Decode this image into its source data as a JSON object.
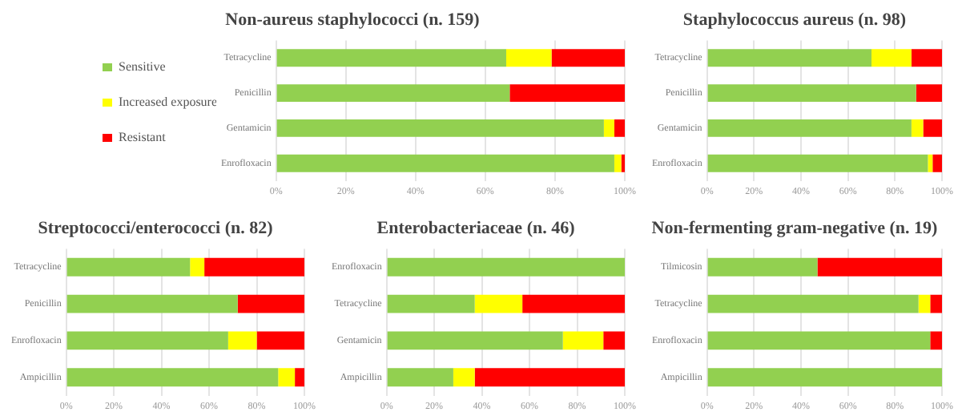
{
  "chart_data": [
    {
      "type": "bar",
      "title": "Non-aureus staphylococci (n. 159)",
      "orientation": "horizontal",
      "stacked": true,
      "grid": "x",
      "legend": "left",
      "categories": [
        "Tetracycline",
        "Penicillin",
        "Gentamicin",
        "Enrofloxacin"
      ],
      "xlim": [
        0,
        100
      ],
      "xticks": [
        {
          "value": 0,
          "label": "0%"
        },
        {
          "value": 20,
          "label": "20%"
        },
        {
          "value": 40,
          "label": "40%"
        },
        {
          "value": 60,
          "label": "60%"
        },
        {
          "value": 80,
          "label": "80%"
        },
        {
          "value": 100,
          "label": "100%"
        }
      ],
      "series": [
        {
          "name": "Sensitive",
          "color": "#92d050",
          "values": [
            66,
            67,
            94,
            97
          ]
        },
        {
          "name": "Increased exposure",
          "color": "#ffff00",
          "values": [
            13,
            0,
            3,
            2
          ]
        },
        {
          "name": "Resistant",
          "color": "#ff0000",
          "values": [
            21,
            33,
            3,
            1
          ]
        }
      ]
    },
    {
      "type": "bar",
      "title": "Staphylococcus aureus (n. 98)",
      "orientation": "horizontal",
      "stacked": true,
      "grid": "x",
      "categories": [
        "Tetracycline",
        "Penicillin",
        "Gentamicin",
        "Enrofloxacin"
      ],
      "xlim": [
        0,
        100
      ],
      "xticks": [
        {
          "value": 0,
          "label": "0%"
        },
        {
          "value": 20,
          "label": "20%"
        },
        {
          "value": 40,
          "label": "40%"
        },
        {
          "value": 60,
          "label": "60%"
        },
        {
          "value": 80,
          "label": "80%"
        },
        {
          "value": 100,
          "label": "100%"
        }
      ],
      "series": [
        {
          "color": "#92d050",
          "values": [
            70,
            89,
            87,
            94
          ]
        },
        {
          "color": "#ffff00",
          "values": [
            17,
            0,
            5,
            2
          ]
        },
        {
          "color": "#ff0000",
          "values": [
            13,
            11,
            8,
            4
          ]
        }
      ]
    },
    {
      "type": "bar",
      "title": "Streptococci/enterococci (n. 82)",
      "orientation": "horizontal",
      "stacked": true,
      "grid": "x",
      "categories": [
        "Tetracycline",
        "Penicillin",
        "Enrofloxacin",
        "Ampicillin"
      ],
      "xlim": [
        0,
        100
      ],
      "xticks": [
        {
          "value": 0,
          "label": "0%"
        },
        {
          "value": 20,
          "label": "20%"
        },
        {
          "value": 40,
          "label": "40%"
        },
        {
          "value": 60,
          "label": "60%"
        },
        {
          "value": 80,
          "label": "80%"
        },
        {
          "value": 100,
          "label": "100%"
        }
      ],
      "series": [
        {
          "color": "#92d050",
          "values": [
            52,
            72,
            68,
            89
          ]
        },
        {
          "color": "#ffff00",
          "values": [
            6,
            0,
            12,
            7
          ]
        },
        {
          "color": "#ff0000",
          "values": [
            42,
            28,
            20,
            4
          ]
        }
      ]
    },
    {
      "type": "bar",
      "title": "Enterobacteriaceae (n. 46)",
      "orientation": "horizontal",
      "stacked": true,
      "grid": "x",
      "categories": [
        "Enrofloxacin",
        "Tetracycline",
        "Gentamicin",
        "Ampicillin"
      ],
      "xlim": [
        0,
        100
      ],
      "xticks": [
        {
          "value": 0,
          "label": "0%"
        },
        {
          "value": 20,
          "label": "20%"
        },
        {
          "value": 40,
          "label": "40%"
        },
        {
          "value": 60,
          "label": "60%"
        },
        {
          "value": 80,
          "label": "80%"
        },
        {
          "value": 100,
          "label": "100%"
        }
      ],
      "series": [
        {
          "color": "#92d050",
          "values": [
            100,
            37,
            74,
            28
          ]
        },
        {
          "color": "#ffff00",
          "values": [
            0,
            20,
            17,
            9
          ]
        },
        {
          "color": "#ff0000",
          "values": [
            0,
            43,
            9,
            63
          ]
        }
      ]
    },
    {
      "type": "bar",
      "title": "Non-fermenting gram-negative (n. 19)",
      "orientation": "horizontal",
      "stacked": true,
      "grid": "x",
      "categories": [
        "Tilmicosin",
        "Tetracycline",
        "Enrofloxacin",
        "Ampicillin"
      ],
      "xlim": [
        0,
        100
      ],
      "xticks": [
        {
          "value": 0,
          "label": "0%"
        },
        {
          "value": 20,
          "label": "20%"
        },
        {
          "value": 40,
          "label": "40%"
        },
        {
          "value": 60,
          "label": "60%"
        },
        {
          "value": 80,
          "label": "80%"
        },
        {
          "value": 100,
          "label": "100%"
        }
      ],
      "series": [
        {
          "color": "#92d050",
          "values": [
            47,
            90,
            95,
            100
          ]
        },
        {
          "color": "#ffff00",
          "values": [
            0,
            5,
            0,
            0
          ]
        },
        {
          "color": "#ff0000",
          "values": [
            53,
            5,
            5,
            0
          ]
        }
      ]
    }
  ]
}
